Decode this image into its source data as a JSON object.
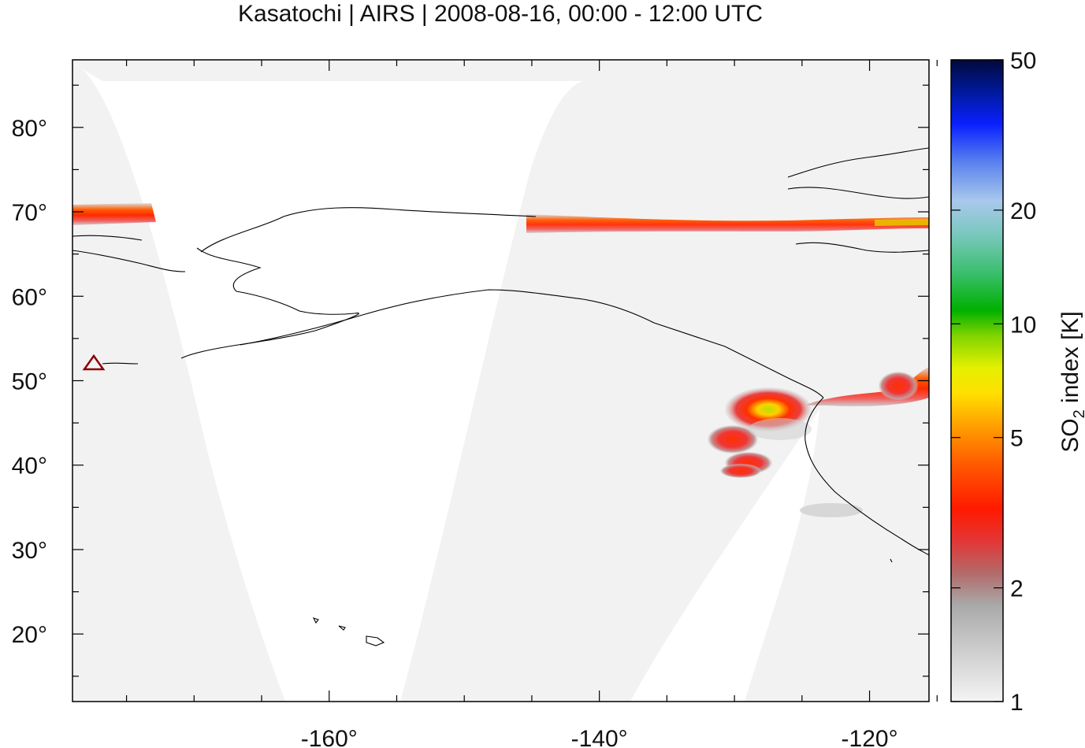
{
  "title": "Kasatochi | AIRS | 2008-08-16, 00:00 - 12:00 UTC",
  "colorbar": {
    "label_main": "SO",
    "label_sub": "2",
    "label_rest": " index [K]",
    "ticks": [
      "1",
      "2",
      "5",
      "10",
      "20",
      "50"
    ],
    "tick_values": [
      1,
      2,
      5,
      10,
      20,
      50
    ],
    "scale": "log",
    "range": [
      1,
      50
    ]
  },
  "colors": {
    "no_data_swath": "#f2f2f2",
    "coastline": "#000000",
    "volcano_marker": "#8b0000"
  },
  "chart_data": {
    "type": "map",
    "projection": "equirectangular",
    "lon_range": [
      -179,
      -115.6
    ],
    "lat_range": [
      12,
      88
    ],
    "x_ticks": [
      {
        "value": -160,
        "label": "-160°"
      },
      {
        "value": -140,
        "label": "-140°"
      },
      {
        "value": -120,
        "label": "-120°"
      }
    ],
    "y_ticks": [
      {
        "value": 20,
        "label": "20°"
      },
      {
        "value": 30,
        "label": "30°"
      },
      {
        "value": 40,
        "label": "40°"
      },
      {
        "value": 50,
        "label": "50°"
      },
      {
        "value": 60,
        "label": "60°"
      },
      {
        "value": 70,
        "label": "70°"
      },
      {
        "value": 80,
        "label": "80°"
      }
    ],
    "volcano": {
      "name": "Kasatochi",
      "lon": -175.5,
      "lat": 52.2,
      "marker": "triangle"
    }
  }
}
